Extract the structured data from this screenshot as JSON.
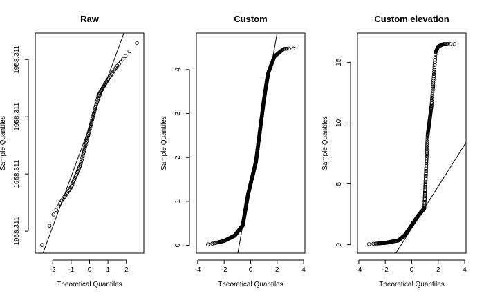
{
  "chart_data": [
    {
      "type": "scatter",
      "title": "Raw",
      "xlabel": "Theoretical Quantiles",
      "ylabel": "Sample Quantiles",
      "xlim": [
        -2.95,
        2.95
      ],
      "ylim": [
        0,
        1
      ],
      "x_ticks": [
        -2,
        -1,
        0,
        1,
        2
      ],
      "y_ticks": [
        0.1,
        0.36,
        0.62,
        0.88
      ],
      "y_tick_labels": [
        "1958.311",
        "1958.311",
        "1958.311",
        "1958.311"
      ],
      "y_tick_rotate": true,
      "grid": false,
      "n_points": 100,
      "quantile_model": "raw",
      "reference_line": {
        "x1": -2.53,
        "y1": 0.0,
        "x2": 1.87,
        "y2": 1.0
      }
    },
    {
      "type": "scatter",
      "title": "Custom",
      "xlabel": "Theoretical Quantiles",
      "ylabel": "Sample Quantiles",
      "xlim": [
        -4.1,
        4.1
      ],
      "ylim": [
        -0.18,
        4.83
      ],
      "x_ticks": [
        -4,
        -2,
        0,
        2,
        4
      ],
      "y_ticks": [
        0,
        1,
        2,
        3,
        4
      ],
      "y_tick_rotate": true,
      "grid": false,
      "n_points": 800,
      "quantile_model": "custom",
      "reference_line": {
        "x1": -0.97,
        "y1": -0.18,
        "x2": 2.0,
        "y2": 4.83
      }
    },
    {
      "type": "scatter",
      "title": "Custom elevation",
      "xlabel": "Theoretical Quantiles",
      "ylabel": "Sample Quantiles",
      "xlim": [
        -4.1,
        4.1
      ],
      "ylim": [
        -0.7,
        17.4
      ],
      "x_ticks": [
        -4,
        -2,
        0,
        2,
        4
      ],
      "y_ticks": [
        0,
        5,
        10,
        15
      ],
      "y_tick_rotate": true,
      "grid": false,
      "n_points": 800,
      "quantile_model": "elevation",
      "reference_line": {
        "x1": -1.2,
        "y1": -0.7,
        "x2": 4.1,
        "y2": 8.4
      }
    }
  ]
}
